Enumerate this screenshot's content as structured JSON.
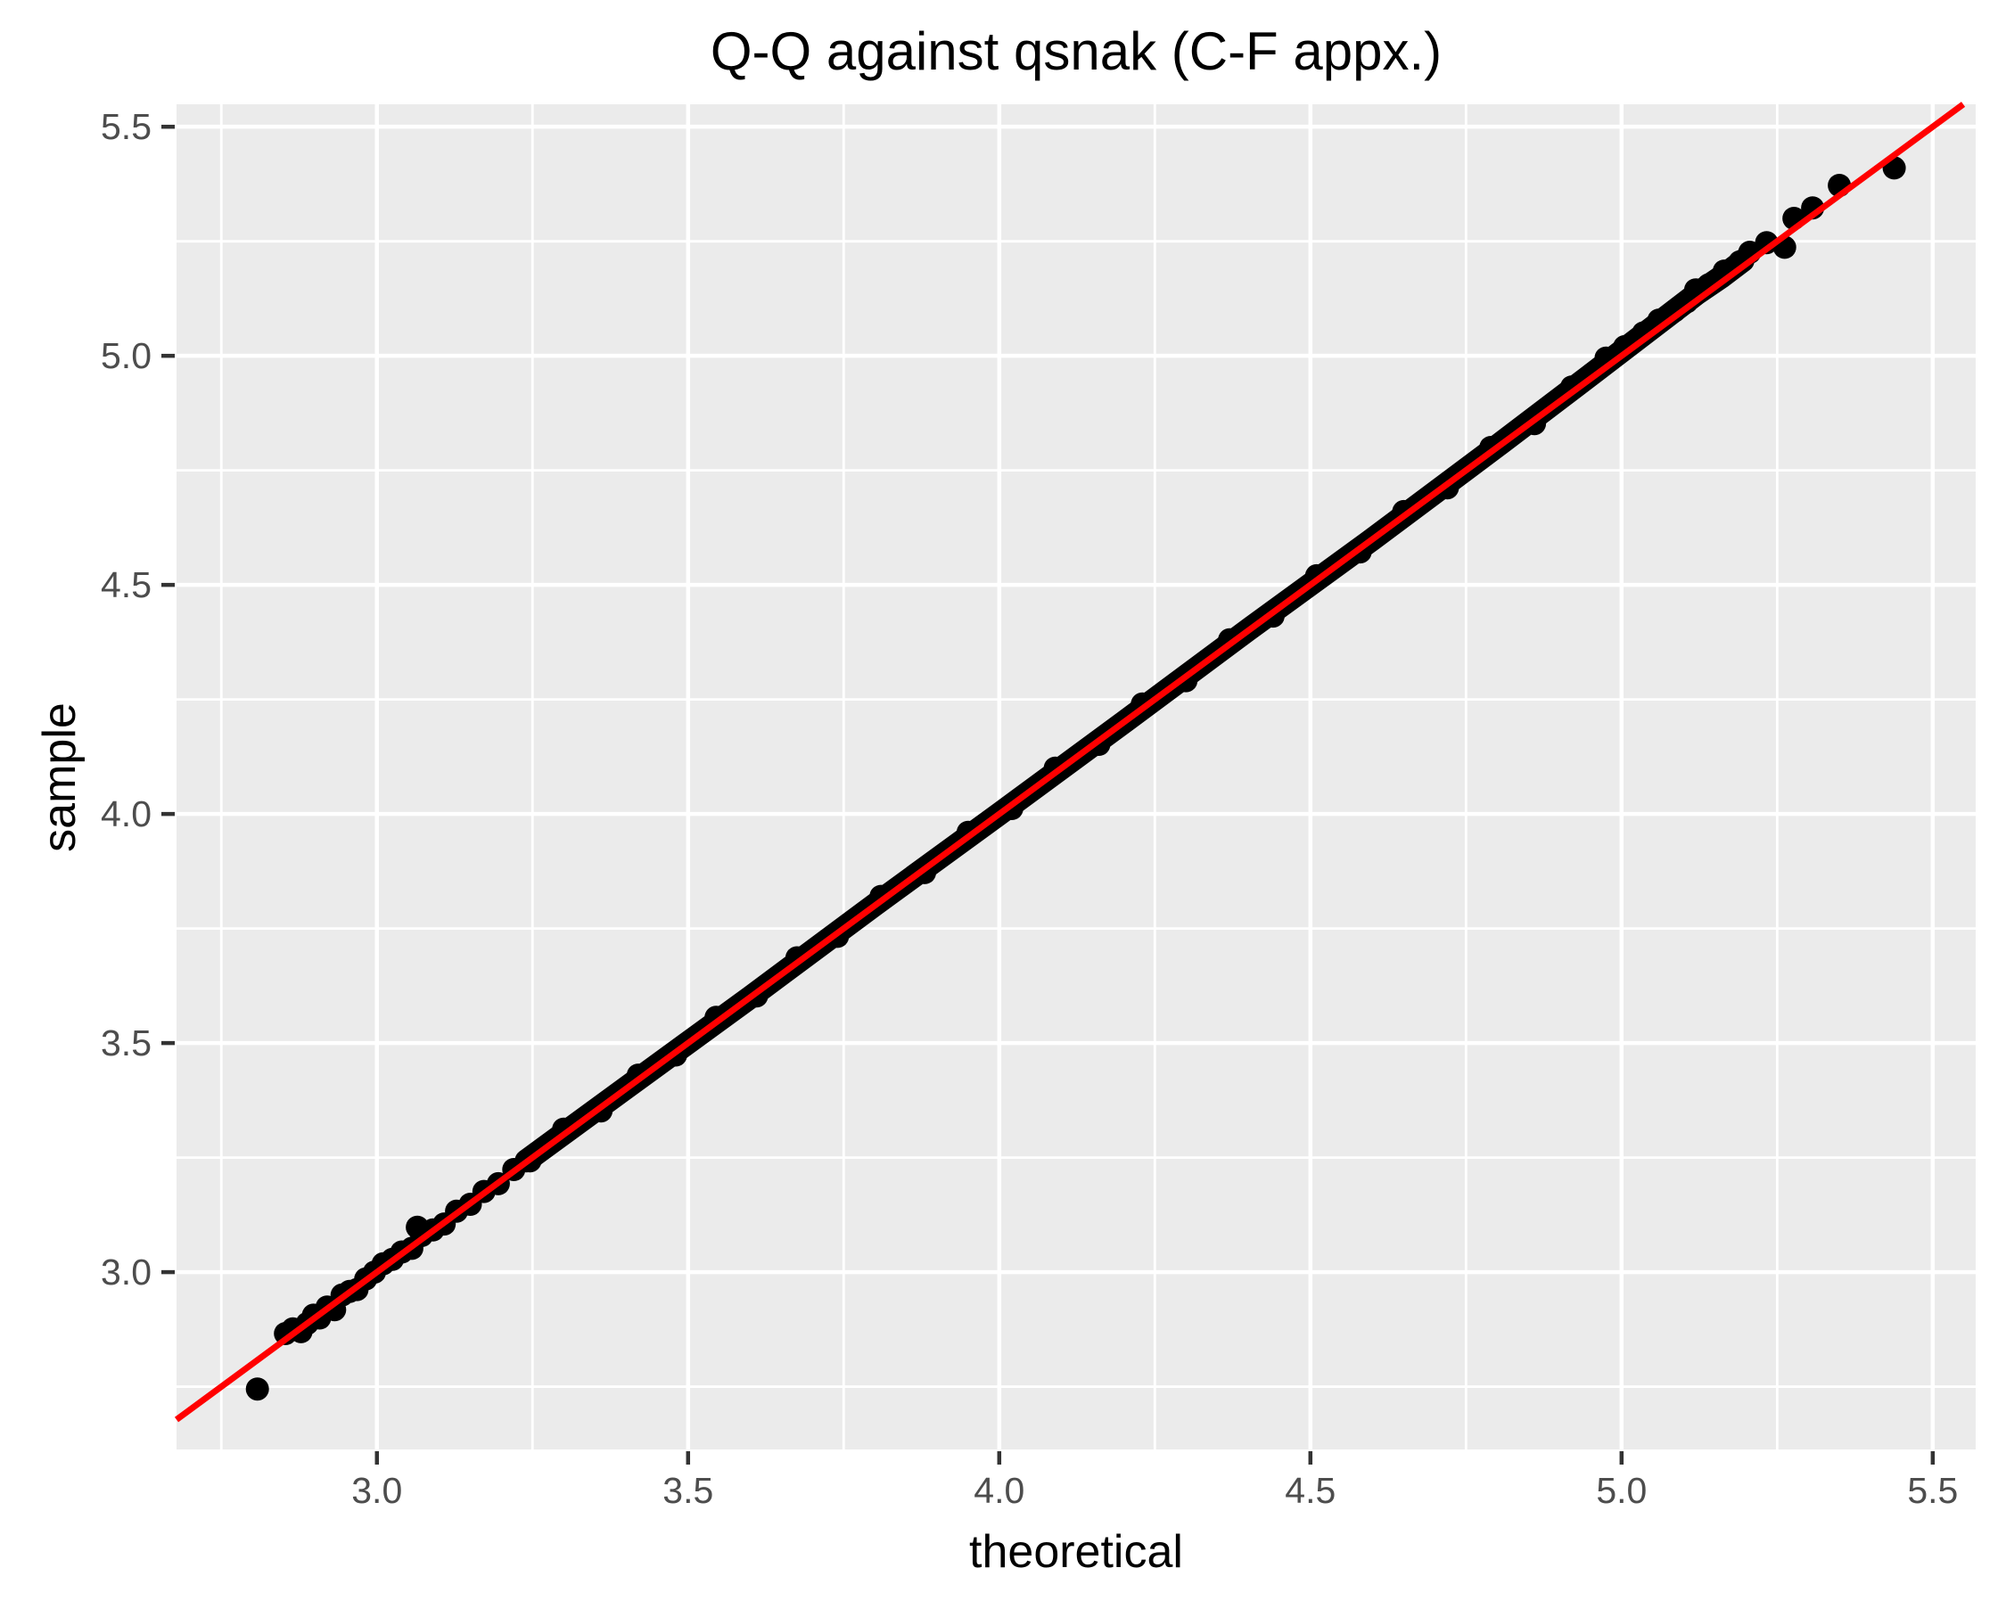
{
  "chart_data": {
    "type": "scatter",
    "title": "Q-Q against qsnak (C-F appx.)",
    "xlabel": "theoretical",
    "ylabel": "sample",
    "x_domain": [
      2.678,
      5.569
    ],
    "y_domain": [
      2.613,
      5.549
    ],
    "x_ticks": {
      "values": [
        3.0,
        3.5,
        4.0,
        4.5,
        5.0,
        5.5
      ],
      "labels": [
        "3.0",
        "3.5",
        "4.0",
        "4.5",
        "5.0",
        "5.5"
      ]
    },
    "y_ticks": {
      "values": [
        3.0,
        3.5,
        4.0,
        4.5,
        5.0,
        5.5
      ],
      "labels": [
        "3.0",
        "3.5",
        "4.0",
        "4.5",
        "5.0",
        "5.5"
      ]
    },
    "x_minor": [
      2.75,
      3.25,
      3.75,
      4.25,
      4.75,
      5.25
    ],
    "y_minor": [
      2.75,
      3.25,
      3.75,
      4.25,
      4.75,
      5.25
    ],
    "grid": "on",
    "legend": "none",
    "colors": {
      "background": "#FFFFFF",
      "panel": "#EBEBEB",
      "grid": "#FFFFFF",
      "point": "#000000",
      "reference_line": "#FF0000",
      "tick_mark": "#333333",
      "tick_label": "#4D4D4D",
      "text": "#000000"
    },
    "reference_line": {
      "slope": 1,
      "intercept": 0
    },
    "points_low": [
      [
        2.808,
        2.745
      ],
      [
        2.853,
        2.866
      ],
      [
        2.865,
        2.876
      ],
      [
        2.878,
        2.87
      ],
      [
        2.888,
        2.888
      ],
      [
        2.898,
        2.906
      ],
      [
        2.908,
        2.9
      ],
      [
        2.92,
        2.924
      ],
      [
        2.932,
        2.918
      ],
      [
        2.944,
        2.95
      ],
      [
        2.956,
        2.958
      ],
      [
        2.968,
        2.962
      ],
      [
        2.982,
        2.985
      ],
      [
        2.996,
        3.0
      ],
      [
        3.01,
        3.018
      ],
      [
        3.025,
        3.028
      ],
      [
        3.04,
        3.044
      ],
      [
        3.056,
        3.052
      ],
      [
        3.065,
        3.098
      ],
      [
        3.072,
        3.08
      ],
      [
        3.09,
        3.092
      ],
      [
        3.108,
        3.105
      ],
      [
        3.128,
        3.133
      ],
      [
        3.15,
        3.148
      ],
      [
        3.172,
        3.176
      ],
      [
        3.195,
        3.193
      ],
      [
        3.22,
        3.224
      ],
      [
        3.246,
        3.243
      ]
    ],
    "points_high": [
      [
        4.975,
        4.995
      ],
      [
        5.005,
        5.02
      ],
      [
        5.035,
        5.05
      ],
      [
        5.06,
        5.078
      ],
      [
        5.085,
        5.098
      ],
      [
        5.105,
        5.118
      ],
      [
        5.119,
        5.144
      ],
      [
        5.14,
        5.155
      ],
      [
        5.165,
        5.185
      ],
      [
        5.19,
        5.205
      ],
      [
        5.206,
        5.226
      ],
      [
        5.233,
        5.247
      ],
      [
        5.262,
        5.237
      ],
      [
        5.277,
        5.3
      ],
      [
        5.307,
        5.323
      ],
      [
        5.35,
        5.372
      ],
      [
        5.438,
        5.41
      ]
    ],
    "band_texture_points": [
      [
        3.3,
        3.312
      ],
      [
        3.36,
        3.352
      ],
      [
        3.42,
        3.43
      ],
      [
        3.48,
        3.474
      ],
      [
        3.545,
        3.556
      ],
      [
        3.61,
        3.603
      ],
      [
        3.675,
        3.686
      ],
      [
        3.74,
        3.733
      ],
      [
        3.81,
        3.82
      ],
      [
        3.88,
        3.872
      ],
      [
        3.95,
        3.96
      ],
      [
        4.02,
        4.012
      ],
      [
        4.09,
        4.1
      ],
      [
        4.16,
        4.152
      ],
      [
        4.23,
        4.24
      ],
      [
        4.3,
        4.291
      ],
      [
        4.37,
        4.38
      ],
      [
        4.44,
        4.432
      ],
      [
        4.51,
        4.52
      ],
      [
        4.58,
        4.572
      ],
      [
        4.65,
        4.66
      ],
      [
        4.72,
        4.712
      ],
      [
        4.79,
        4.8
      ],
      [
        4.86,
        4.852
      ],
      [
        4.92,
        4.932
      ]
    ],
    "dense_band_centerline": [
      [
        3.24,
        3.243
      ],
      [
        3.4,
        3.402
      ],
      [
        3.6,
        3.6
      ],
      [
        3.8,
        3.802
      ],
      [
        4.0,
        4.0
      ],
      [
        4.2,
        4.2
      ],
      [
        4.4,
        4.402
      ],
      [
        4.6,
        4.6
      ],
      [
        4.8,
        4.803
      ],
      [
        4.95,
        4.958
      ],
      [
        5.05,
        5.062
      ],
      [
        5.12,
        5.135
      ],
      [
        5.16,
        5.172
      ],
      [
        5.195,
        5.208
      ]
    ]
  }
}
